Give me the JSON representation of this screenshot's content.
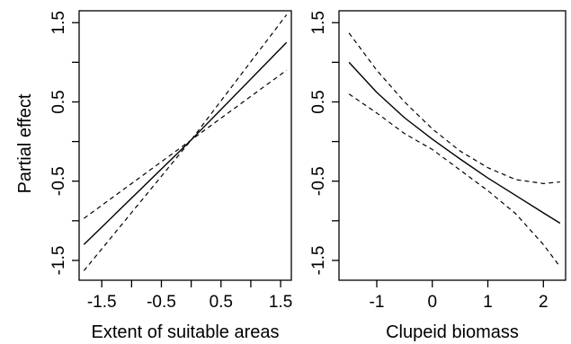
{
  "figure": {
    "ylabel": "Partial effect",
    "panel_left_xlabel": "Extent of suitable areas",
    "panel_right_xlabel": "Clupeid biomass"
  },
  "chart_data": [
    {
      "type": "line",
      "title": "",
      "xlabel": "Extent of suitable areas",
      "ylabel": "Partial effect",
      "xlim": [
        -1.88,
        1.68
      ],
      "ylim": [
        -1.75,
        1.65
      ],
      "xticks": [
        -1.5,
        -1.0,
        -0.5,
        0.0,
        0.5,
        1.0,
        1.5
      ],
      "xtick_labels": [
        "-1.5",
        "",
        "-0.5",
        "",
        "0.5",
        "",
        "1.5"
      ],
      "yticks": [
        -1.5,
        -1.0,
        -0.5,
        0.0,
        0.5,
        1.0,
        1.5
      ],
      "ytick_labels": [
        "-1.5",
        "",
        "-0.5",
        "",
        "0.5",
        "",
        "1.5"
      ],
      "grid": false,
      "series": [
        {
          "style": "solid",
          "x": [
            -1.8,
            0.0,
            1.6
          ],
          "y": [
            -1.3,
            0.02,
            1.25
          ]
        },
        {
          "style": "dashed",
          "x": [
            -1.8,
            0.0,
            1.6
          ],
          "y": [
            -0.97,
            0.02,
            0.9
          ]
        },
        {
          "style": "dashed",
          "x": [
            -1.8,
            0.0,
            1.6
          ],
          "y": [
            -1.63,
            0.02,
            1.6
          ]
        }
      ]
    },
    {
      "type": "line",
      "title": "",
      "xlabel": "Clupeid biomass",
      "ylabel": "",
      "xlim": [
        -1.68,
        2.4
      ],
      "ylim": [
        -1.75,
        1.65
      ],
      "xticks": [
        -1,
        0,
        1,
        2
      ],
      "xtick_labels": [
        "-1",
        "0",
        "1",
        "2"
      ],
      "yticks": [
        -1.5,
        -1.0,
        -0.5,
        0.0,
        0.5,
        1.0,
        1.5
      ],
      "ytick_labels": [
        "-1.5",
        "",
        "-0.5",
        "",
        "0.5",
        "",
        "1.5"
      ],
      "grid": false,
      "series": [
        {
          "style": "solid",
          "x": [
            -1.5,
            -1.0,
            -0.5,
            0.0,
            0.5,
            1.0,
            1.5,
            2.0,
            2.3
          ],
          "y": [
            1.0,
            0.62,
            0.3,
            0.03,
            -0.22,
            -0.46,
            -0.68,
            -0.9,
            -1.03
          ]
        },
        {
          "style": "dashed",
          "x": [
            -1.5,
            -1.0,
            -0.5,
            0.0,
            0.5,
            1.0,
            1.5,
            2.0,
            2.3
          ],
          "y": [
            1.37,
            0.9,
            0.5,
            0.16,
            -0.12,
            -0.33,
            -0.48,
            -0.53,
            -0.51
          ]
        },
        {
          "style": "dashed",
          "x": [
            -1.5,
            -1.0,
            -0.5,
            0.0,
            0.5,
            1.0,
            1.5,
            2.0,
            2.3
          ],
          "y": [
            0.6,
            0.36,
            0.1,
            -0.1,
            -0.36,
            -0.62,
            -0.91,
            -1.3,
            -1.58
          ]
        }
      ]
    }
  ]
}
